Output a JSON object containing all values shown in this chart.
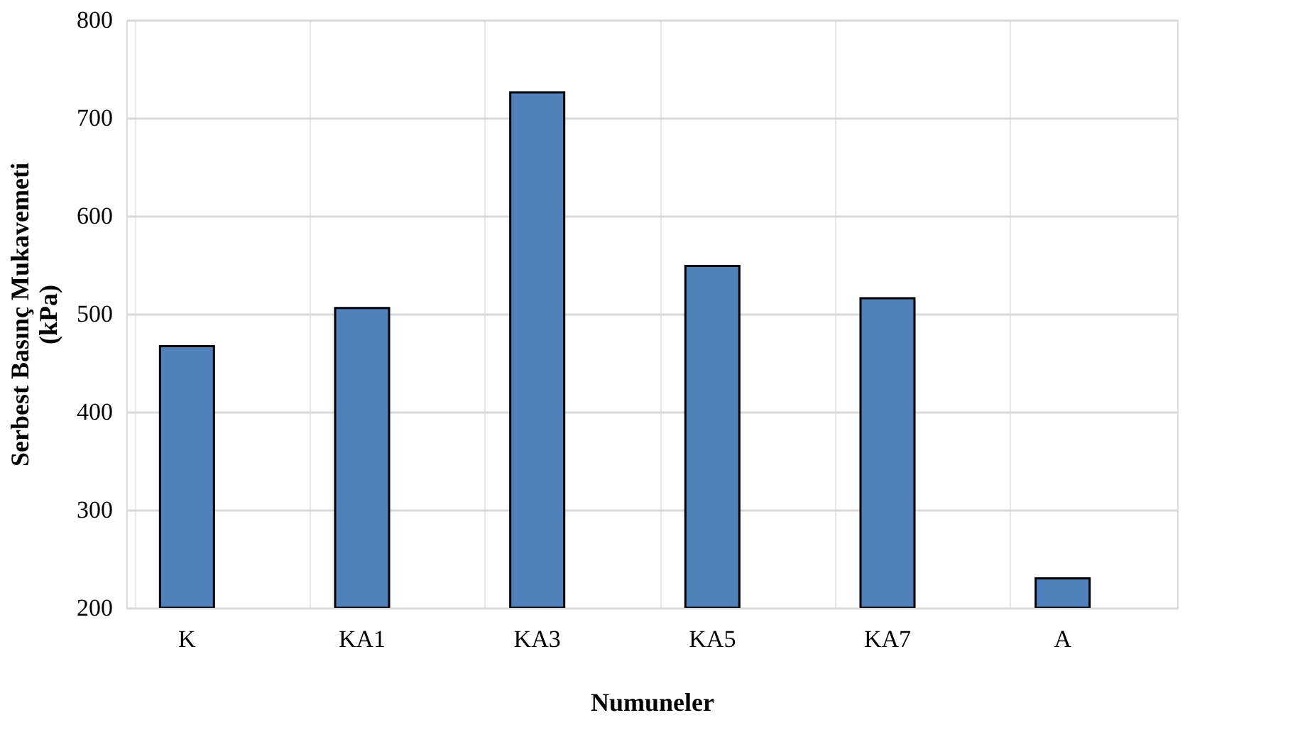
{
  "chart_data": {
    "type": "bar",
    "xlabel": "Numuneler",
    "ylabel": "Serbest Basınç Mukavemeti (kPa)",
    "categories": [
      "K",
      "KA1",
      "KA3",
      "KA5",
      "KA7",
      "A"
    ],
    "values": [
      467,
      506,
      726,
      549,
      516,
      230
    ],
    "color": "#4f81bd",
    "ylim": [
      200,
      800
    ],
    "yticks": [
      200,
      300,
      400,
      500,
      600,
      700,
      800
    ],
    "grid": true
  }
}
